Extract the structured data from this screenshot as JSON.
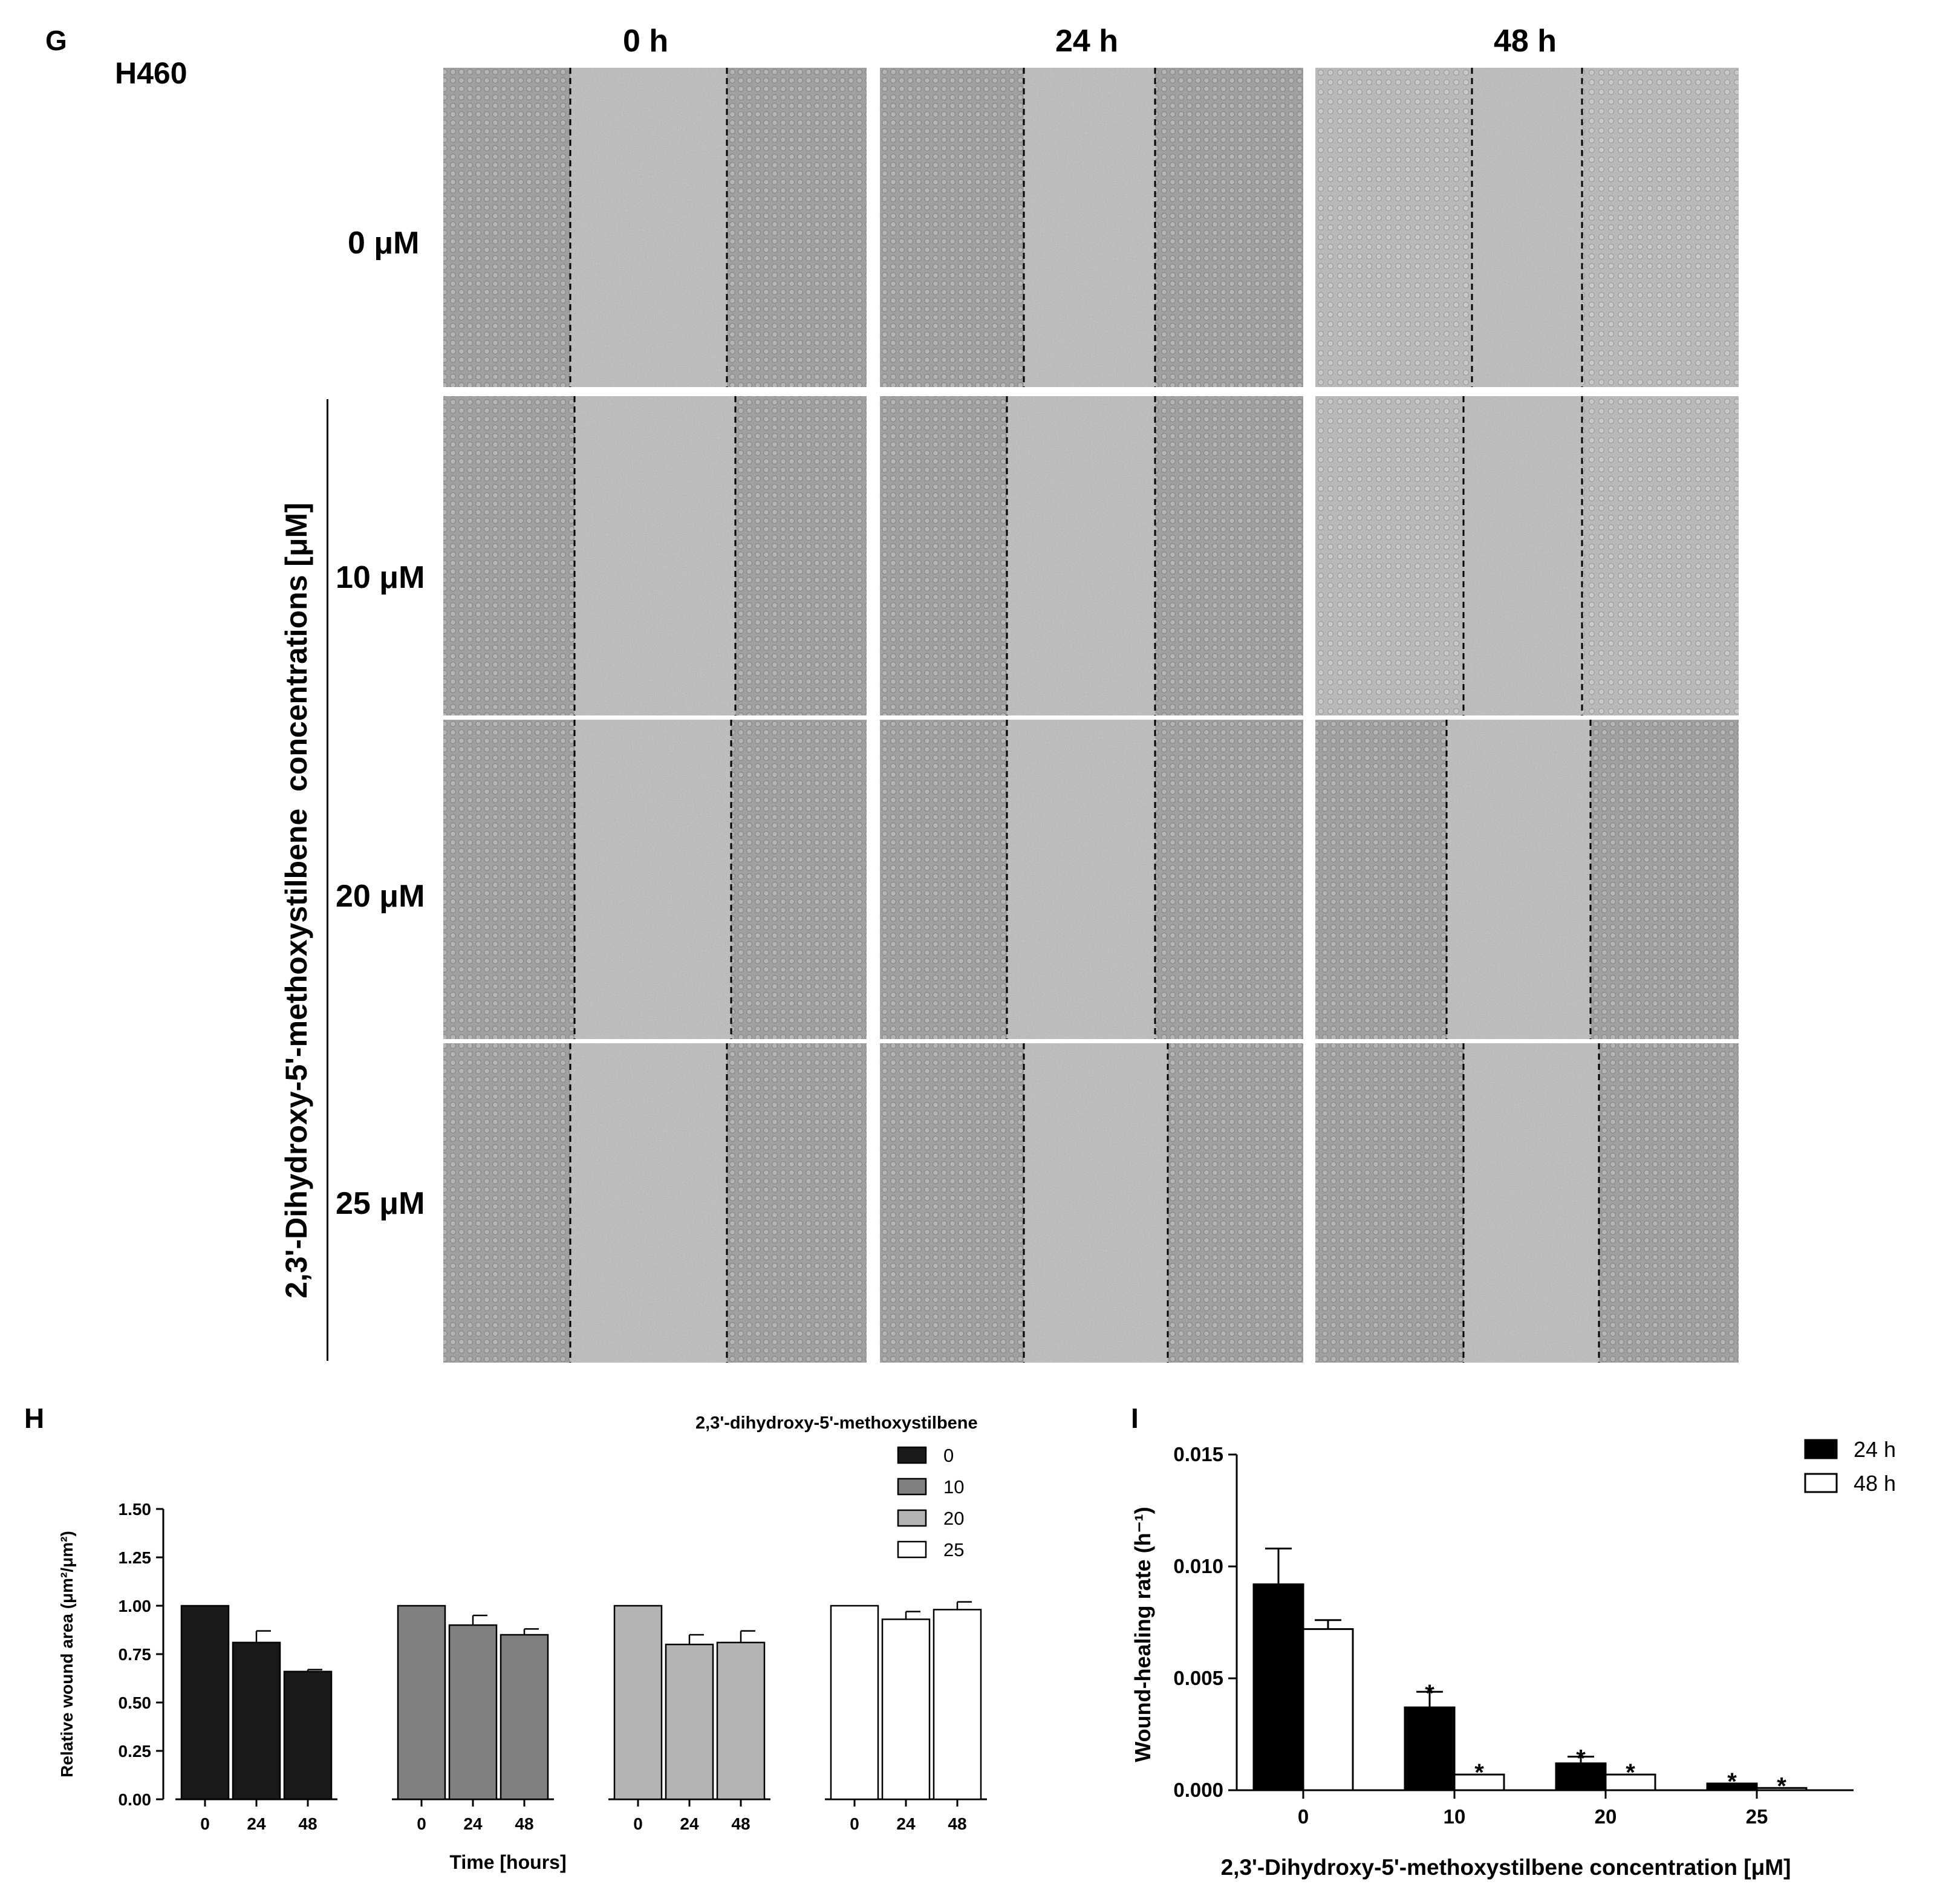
{
  "panel_g": {
    "letter": "G",
    "cell_line": "H460",
    "columns": [
      "0 h",
      "24 h",
      "48 h"
    ],
    "rows": [
      "0 μM",
      "10 μM",
      "20 μM",
      "25 μM"
    ],
    "side_label": "2,3'-Dihydroxy-5'-methoxystilbene  concentrations [μM]"
  },
  "panel_h_letter": "H",
  "panel_i_letter": "I",
  "chart_data": [
    {
      "type": "bar",
      "panel": "H",
      "legend_title": "2,3'-dihydroxy-5'-methoxystilbene",
      "legend_placement": "top-right",
      "xlabel": "Time [hours]",
      "ylabel": "Relative wound area (μm²/μm²)",
      "ylim": [
        0,
        1.5
      ],
      "yticks": [
        "0.00",
        "0.25",
        "0.50",
        "0.75",
        "1.00",
        "1.25",
        "1.50"
      ],
      "categories": [
        "0",
        "24",
        "48"
      ],
      "series": [
        {
          "name": "0",
          "color": "#1a1a1a",
          "values": [
            1.0,
            0.81,
            0.66
          ],
          "errors": [
            0.0,
            0.06,
            0.01
          ]
        },
        {
          "name": "10",
          "color": "#808080",
          "values": [
            1.0,
            0.9,
            0.85
          ],
          "errors": [
            0.0,
            0.05,
            0.03
          ]
        },
        {
          "name": "20",
          "color": "#b4b4b4",
          "values": [
            1.0,
            0.8,
            0.81
          ],
          "errors": [
            0.0,
            0.05,
            0.06
          ]
        },
        {
          "name": "25",
          "color": "#ffffff",
          "values": [
            1.0,
            0.93,
            0.98
          ],
          "errors": [
            0.0,
            0.04,
            0.04
          ]
        }
      ]
    },
    {
      "type": "bar",
      "panel": "I",
      "legend_placement": "top-right",
      "xlabel": "2,3'-Dihydroxy-5'-methoxystilbene concentration [μM]",
      "ylabel": "Wound-healing rate (h⁻¹)",
      "ylim": [
        0,
        0.015
      ],
      "yticks": [
        "0.000",
        "0.005",
        "0.010",
        "0.015"
      ],
      "categories": [
        "0",
        "10",
        "20",
        "25"
      ],
      "series": [
        {
          "name": "24 h",
          "color": "#000000",
          "values": [
            0.0092,
            0.0037,
            0.0012,
            0.0003
          ],
          "errors": [
            0.0016,
            0.0007,
            0.0003,
            0.0
          ],
          "significant": [
            false,
            true,
            true,
            true
          ]
        },
        {
          "name": "48 h",
          "color": "#ffffff",
          "values": [
            0.0072,
            0.0007,
            0.0007,
            0.0001
          ],
          "errors": [
            0.0004,
            0.0,
            0.0,
            0.0
          ],
          "significant": [
            false,
            true,
            true,
            true
          ]
        }
      ]
    }
  ]
}
